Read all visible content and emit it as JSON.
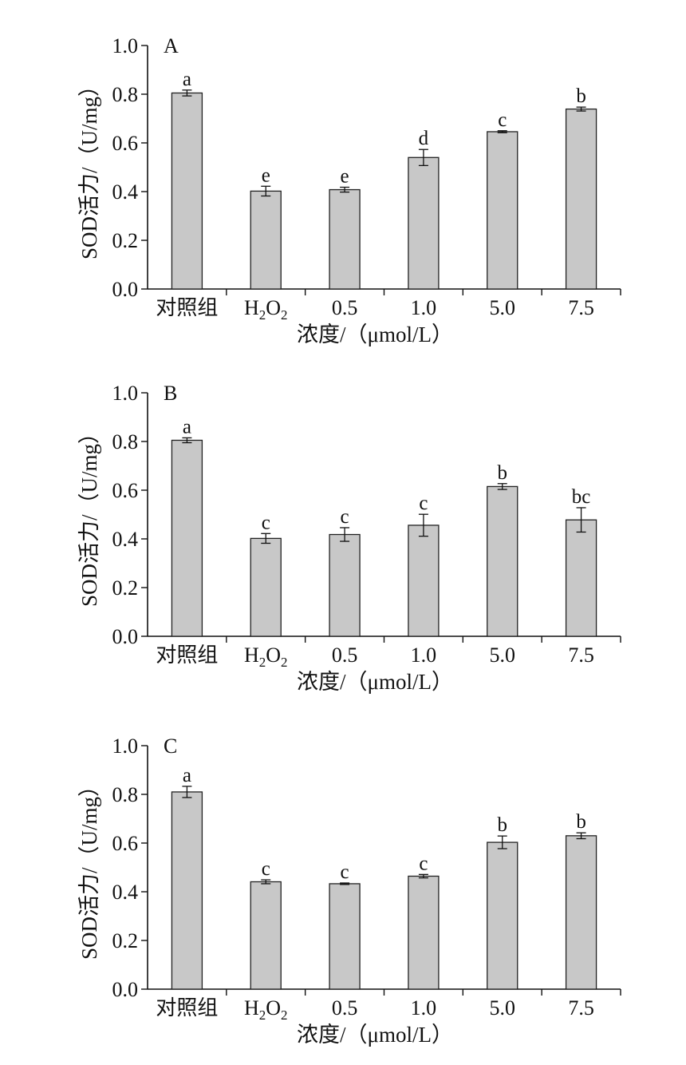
{
  "colors": {
    "bar_fill": "#c8c8c8",
    "bar_stroke": "#222222",
    "axis": "#111111"
  },
  "chart_data": [
    {
      "type": "bar",
      "panel": "A",
      "categories": [
        "对照组",
        "H2O2",
        "0.5",
        "1.0",
        "5.0",
        "7.5"
      ],
      "values": [
        0.805,
        0.402,
        0.408,
        0.54,
        0.646,
        0.739
      ],
      "errors": [
        0.012,
        0.02,
        0.01,
        0.033,
        0.004,
        0.008
      ],
      "significance": [
        "a",
        "e",
        "e",
        "d",
        "c",
        "b"
      ],
      "xlabel": "浓度/（μmol/L）",
      "ylabel": "SOD活力/（U/mg）",
      "ylim": [
        0,
        1.0
      ],
      "yticks": [
        "0.0",
        "0.2",
        "0.4",
        "0.6",
        "0.8",
        "1.0"
      ],
      "grid": false
    },
    {
      "type": "bar",
      "panel": "B",
      "categories": [
        "对照组",
        "H2O2",
        "0.5",
        "1.0",
        "5.0",
        "7.5"
      ],
      "values": [
        0.805,
        0.402,
        0.418,
        0.456,
        0.615,
        0.478
      ],
      "errors": [
        0.01,
        0.02,
        0.028,
        0.045,
        0.012,
        0.05
      ],
      "significance": [
        "a",
        "c",
        "c",
        "c",
        "b",
        "bc"
      ],
      "xlabel": "浓度/（μmol/L）",
      "ylabel": "SOD活力/（U/mg）",
      "ylim": [
        0,
        1.0
      ],
      "yticks": [
        "0.0",
        "0.2",
        "0.4",
        "0.6",
        "0.8",
        "1.0"
      ],
      "grid": false
    },
    {
      "type": "bar",
      "panel": "C",
      "categories": [
        "对照组",
        "H2O2",
        "0.5",
        "1.0",
        "5.0",
        "7.5"
      ],
      "values": [
        0.81,
        0.441,
        0.433,
        0.464,
        0.603,
        0.63
      ],
      "errors": [
        0.023,
        0.008,
        0.003,
        0.007,
        0.026,
        0.012
      ],
      "significance": [
        "a",
        "c",
        "c",
        "c",
        "b",
        "b"
      ],
      "xlabel": "浓度/（μmol/L）",
      "ylabel": "SOD活力/（U/mg）",
      "ylim": [
        0,
        1.0
      ],
      "yticks": [
        "0.0",
        "0.2",
        "0.4",
        "0.6",
        "0.8",
        "1.0"
      ],
      "grid": false
    }
  ]
}
